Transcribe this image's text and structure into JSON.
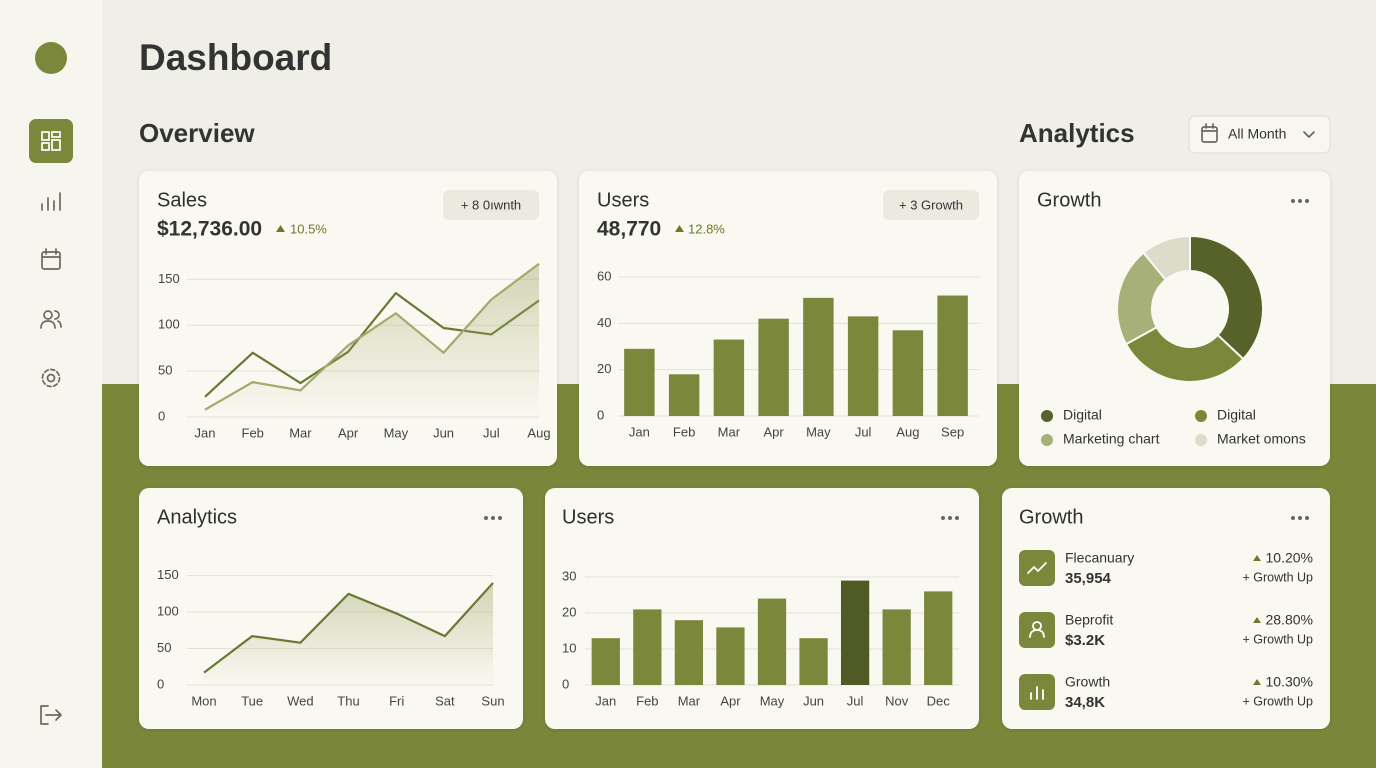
{
  "header": {
    "title": "Dashboard"
  },
  "overview": {
    "title": "Overview"
  },
  "analytics": {
    "title": "Analytics",
    "filter": "All Month"
  },
  "sales": {
    "title": "Sales",
    "value": "$12,736.00",
    "change": "10.5%",
    "badge": "+ 8 0ıwnth",
    "chart": {
      "type": "line",
      "categories": [
        "Jan",
        "Feb",
        "Mar",
        "Apr",
        "May",
        "Jun",
        "Jul",
        "Aug"
      ],
      "series": [
        {
          "color": "#6b7733",
          "values": [
            22,
            70,
            37,
            71,
            135,
            97,
            90,
            127
          ]
        },
        {
          "color": "#a3ab6c",
          "area": true,
          "values": [
            8,
            38,
            29,
            78,
            113,
            70,
            128,
            167
          ]
        }
      ],
      "ylim": [
        0,
        170
      ],
      "yticks": [
        0,
        50,
        100,
        150
      ],
      "grid": true
    }
  },
  "users": {
    "title": "Users",
    "value": "48,770",
    "change": "12.8%",
    "badge": "+ 3 Growth",
    "chart": {
      "type": "bar",
      "categories": [
        "Jan",
        "Feb",
        "Mar",
        "Apr",
        "May",
        "Jul",
        "Aug",
        "Sep"
      ],
      "values": [
        29,
        18,
        33,
        42,
        51,
        43,
        37,
        52
      ],
      "color": "#7b873a",
      "ylim": [
        0,
        60
      ],
      "yticks": [
        0,
        20,
        40,
        60
      ],
      "grid": true
    }
  },
  "growth": {
    "title": "Growth",
    "chart": {
      "type": "donut",
      "categories": [
        "Digital",
        "Digital",
        "Marketing chart",
        "Market omons"
      ],
      "values": [
        37,
        30,
        22,
        11
      ],
      "colors": [
        "#56622a",
        "#7b873a",
        "#a8b07a",
        "#dddccb"
      ]
    }
  },
  "analytics_card": {
    "title": "Analytics",
    "chart": {
      "type": "line",
      "categories": [
        "Mon",
        "Tue",
        "Wed",
        "Thu",
        "Fri",
        "Sat",
        "Sun"
      ],
      "series": [
        {
          "color": "#6b7733",
          "area": true,
          "values": [
            17,
            67,
            58,
            125,
            98,
            67,
            140
          ]
        }
      ],
      "ylim": [
        0,
        155
      ],
      "yticks": [
        0,
        50,
        100,
        150
      ],
      "grid": true
    }
  },
  "users_monthly": {
    "title": "Users",
    "chart": {
      "type": "bar",
      "categories": [
        "Jan",
        "Feb",
        "Mar",
        "Apr",
        "May",
        "Jun",
        "Jul",
        "Nov",
        "Dec"
      ],
      "values": [
        13,
        21,
        18,
        16,
        24,
        13,
        29,
        21,
        26
      ],
      "color": "#7b873a",
      "colors": [
        "#7b873a",
        "#7b873a",
        "#7b873a",
        "#7b873a",
        "#7b873a",
        "#7b873a",
        "#4f5a24",
        "#7b873a",
        "#7b873a"
      ],
      "ylim": [
        0,
        30
      ],
      "yticks": [
        0,
        10,
        20,
        30
      ],
      "grid": true
    }
  },
  "growth_list": {
    "title": "Growth",
    "items": [
      {
        "label": "Flecanuary",
        "value": "35,954",
        "change": "10.20%",
        "note": "+ Growth Up"
      },
      {
        "label": "Beprofit",
        "value": "$3.2K",
        "change": "28.80%",
        "note": "+ Growth Up"
      },
      {
        "label": "Growth",
        "value": "34,8K",
        "change": "10.30%",
        "note": "+ Growth Up"
      }
    ]
  }
}
